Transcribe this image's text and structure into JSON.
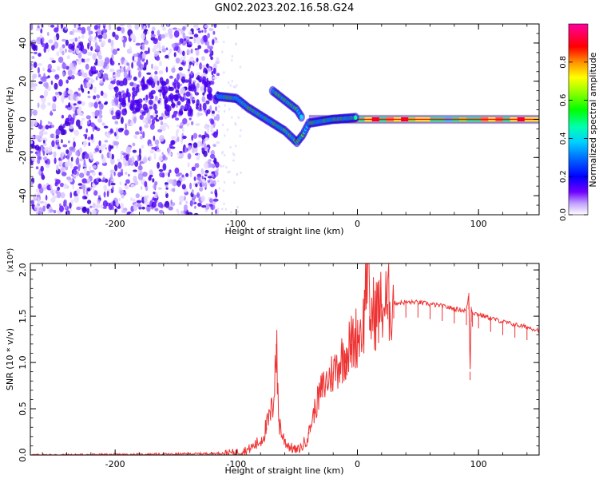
{
  "figure": {
    "title": "GN02.2023.202.16.58.G24"
  },
  "chart_data": [
    {
      "type": "heatmap",
      "title": "GN02.2023.202.16.58.G24",
      "xlabel": "Height of straight line (km)",
      "ylabel": "Frequency (Hz)",
      "xlim": [
        -270,
        150
      ],
      "ylim": [
        -50,
        50
      ],
      "xticks": [
        -200,
        -100,
        0,
        100
      ],
      "yticks": [
        -40,
        -20,
        0,
        20,
        40
      ],
      "grid": false,
      "colorbar": {
        "label": "Normalized spectral amplitude",
        "range": [
          0,
          1
        ],
        "ticks": [
          0.0,
          0.2,
          0.4,
          0.6,
          0.8
        ],
        "colormap": [
          "#ffffff",
          "#6a00ff",
          "#0000ff",
          "#00a0ff",
          "#00ffcc",
          "#00ff00",
          "#b0ff00",
          "#ffff00",
          "#ff8000",
          "#ff0000",
          "#ff00aa"
        ]
      },
      "features": [
        {
          "name": "noise",
          "x_range": [
            -270,
            -115
          ],
          "freq_range": [
            -50,
            50
          ],
          "amplitude": 0.05
        },
        {
          "name": "signal_trace",
          "points": [
            [
              -115,
              12
            ],
            [
              -100,
              11
            ],
            [
              -90,
              6
            ],
            [
              -80,
              2
            ],
            [
              -70,
              -2
            ],
            [
              -60,
              -6
            ],
            [
              -50,
              -12
            ],
            [
              -45,
              -8
            ],
            [
              -40,
              -2
            ],
            [
              -20,
              0
            ],
            [
              0,
              1
            ],
            [
              150,
              0
            ]
          ]
        },
        {
          "name": "upper_branch",
          "points": [
            [
              -70,
              15
            ],
            [
              -60,
              10
            ],
            [
              -50,
              5
            ],
            [
              -45,
              0
            ]
          ]
        }
      ]
    },
    {
      "type": "line",
      "xlabel": "Height of straight line (km)",
      "ylabel": "SNR (10 * v/v)",
      "y_multiplier": "(x10⁴)",
      "xlim": [
        -270,
        150
      ],
      "ylim": [
        0,
        2.07
      ],
      "xticks": [
        -200,
        -100,
        0,
        100
      ],
      "yticks": [
        0.0,
        0.5,
        1.0,
        1.5,
        2.0
      ],
      "color": "#ee3333",
      "series": [
        {
          "x": [
            -270,
            -200,
            -150,
            -110,
            -100,
            -90,
            -80,
            -75,
            -70,
            -67,
            -65,
            -62,
            -58,
            -55,
            -50,
            -45,
            -40,
            -35,
            -30,
            -25,
            -20,
            -15,
            -10,
            -5,
            0,
            5,
            8,
            10,
            15,
            20,
            25,
            30,
            40,
            50,
            60,
            70,
            80,
            90,
            92,
            93,
            94,
            95,
            100,
            110,
            120,
            130,
            140,
            150
          ],
          "y": [
            0.0,
            0.005,
            0.01,
            0.02,
            0.03,
            0.06,
            0.15,
            0.3,
            0.5,
            1.2,
            0.4,
            0.2,
            0.12,
            0.08,
            0.05,
            0.1,
            0.25,
            0.5,
            0.7,
            0.8,
            0.9,
            1.0,
            1.1,
            1.2,
            1.3,
            1.4,
            2.1,
            1.5,
            1.55,
            1.6,
            1.63,
            1.64,
            1.65,
            1.65,
            1.63,
            1.61,
            1.58,
            1.56,
            1.75,
            0.9,
            1.6,
            1.54,
            1.52,
            1.48,
            1.44,
            1.41,
            1.38,
            1.35
          ]
        }
      ]
    }
  ]
}
